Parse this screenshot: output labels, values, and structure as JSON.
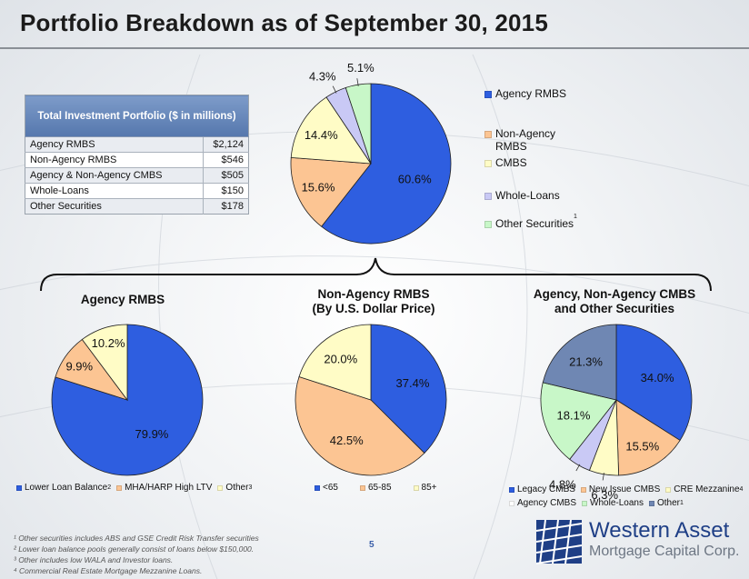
{
  "page": {
    "title": "Portfolio Breakdown as of September 30, 2015",
    "page_number": "5"
  },
  "table": {
    "header": "Total Investment Portfolio ($ in millions)",
    "rows": [
      {
        "label": "Agency RMBS",
        "value": "$2,124"
      },
      {
        "label": "Non-Agency RMBS",
        "value": "$546"
      },
      {
        "label": "Agency & Non-Agency CMBS",
        "value": "$505"
      },
      {
        "label": "Whole-Loans",
        "value": "$150"
      },
      {
        "label": "Other Securities",
        "value": "$178"
      }
    ]
  },
  "sections": {
    "agency_title": "Agency RMBS",
    "nonagency_title_1": "Non-Agency RMBS",
    "nonagency_title_2": "(By U.S. Dollar Price)",
    "cmbs_title_1": "Agency, Non-Agency CMBS",
    "cmbs_title_2": "and Other Securities"
  },
  "legends": {
    "main": [
      {
        "label": "Agency RMBS"
      },
      {
        "label": "Non-Agency",
        "label2": "RMBS"
      },
      {
        "label": "CMBS"
      },
      {
        "label": "Whole-Loans"
      },
      {
        "label": "Other Securities",
        "sup": "1"
      }
    ],
    "agency": [
      {
        "label": "Lower Loan Balance",
        "sup": "2"
      },
      {
        "label": "MHA/HARP High LTV"
      },
      {
        "label": "Other",
        "sup": "3"
      }
    ],
    "nonagency": [
      {
        "label": "<65"
      },
      {
        "label": "65-85"
      },
      {
        "label": "85+"
      }
    ],
    "cmbs_row1": [
      {
        "label": "Legacy CMBS"
      },
      {
        "label": "New Issue CMBS"
      },
      {
        "label": "CRE Mezzanine",
        "sup": "4"
      }
    ],
    "cmbs_row2": [
      {
        "label": "Agency CMBS"
      },
      {
        "label": "Whole-Loans"
      },
      {
        "label": "Other",
        "sup": "1"
      }
    ]
  },
  "chart_data": [
    {
      "type": "pie",
      "id": "total",
      "categories": [
        "Agency RMBS",
        "Non-Agency RMBS",
        "CMBS",
        "Whole-Loans",
        "Other Securities"
      ],
      "values": [
        60.6,
        15.6,
        14.4,
        4.3,
        5.1
      ],
      "labels": [
        "60.6%",
        "15.6%",
        "14.4%",
        "4.3%",
        "5.1%"
      ],
      "colors": [
        "#2e5ee0",
        "#fcc593",
        "#fffcc6",
        "#c9c9f5",
        "#c8f7c8"
      ],
      "legend_position": "right"
    },
    {
      "type": "pie",
      "id": "agency",
      "title": "Agency RMBS",
      "categories": [
        "Lower Loan Balance",
        "MHA/HARP High LTV",
        "Other"
      ],
      "values": [
        79.9,
        9.9,
        10.2
      ],
      "labels": [
        "79.9%",
        "9.9%",
        "10.2%"
      ],
      "colors": [
        "#2e5ee0",
        "#fcc593",
        "#fffcc6"
      ],
      "legend_position": "bottom"
    },
    {
      "type": "pie",
      "id": "nonagency",
      "title": "Non-Agency RMBS (By U.S. Dollar Price)",
      "categories": [
        "<65",
        "65-85",
        "85+"
      ],
      "values": [
        37.4,
        42.5,
        20.0
      ],
      "labels": [
        "37.4%",
        "42.5%",
        "20.0%"
      ],
      "colors": [
        "#2e5ee0",
        "#fcc593",
        "#fffcc6"
      ],
      "legend_position": "bottom"
    },
    {
      "type": "pie",
      "id": "cmbs",
      "title": "Agency, Non-Agency CMBS and Other Securities",
      "categories": [
        "Legacy CMBS",
        "New Issue CMBS",
        "CRE Mezzanine",
        "Agency CMBS",
        "Whole-Loans",
        "Other"
      ],
      "values": [
        34.0,
        15.5,
        6.3,
        4.8,
        18.1,
        21.3
      ],
      "labels": [
        "34.0%",
        "15.5%",
        "6.3%",
        "4.8%",
        "18.1%",
        "21.3%"
      ],
      "colors": [
        "#2e5ee0",
        "#fcc593",
        "#fffcc6",
        "#c9c9f5",
        "#c8f7c8",
        "#6f87b3"
      ],
      "legend_position": "bottom"
    }
  ],
  "footnotes": [
    "¹ Other securities includes ABS and GSE Credit Risk Transfer securities",
    "² Lower loan balance pools generally consist of loans below $150,000.",
    "³ Other includes low WALA  and Investor loans.",
    "⁴ Commercial Real Estate Mortgage Mezzanine Loans."
  ],
  "logo": {
    "line1": "Western Asset",
    "line2": "Mortgage Capital Corp."
  }
}
